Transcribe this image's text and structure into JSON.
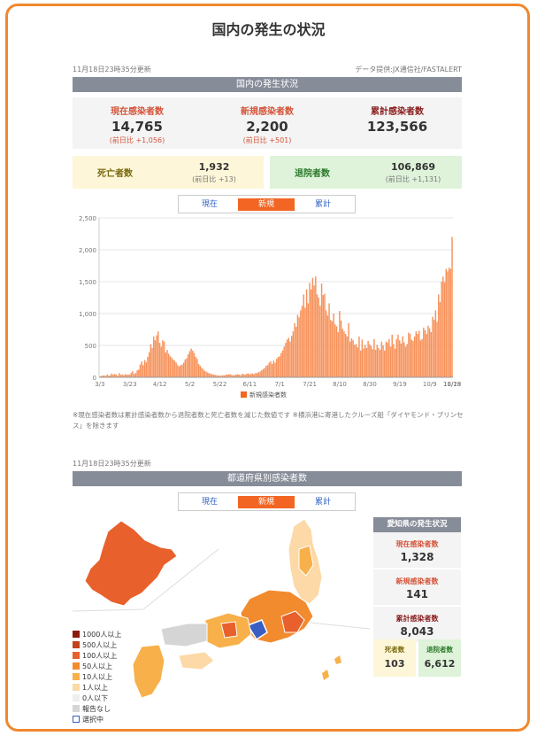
{
  "page_title": "国内の発生の状況",
  "updated_label": "11月18日23時35分更新",
  "source_label": "データ提供:JX通信社/FASTALERT",
  "section1_title": "国内の発生状況",
  "stats": {
    "current": {
      "label": "現在感染者数",
      "value": "14,765",
      "diff": "(前日比 +1,056)"
    },
    "new": {
      "label": "新規感染者数",
      "value": "2,200",
      "diff": "(前日比 +501)"
    },
    "total": {
      "label": "累計感染者数",
      "value": "123,566"
    },
    "deaths": {
      "label": "死亡者数",
      "value": "1,932",
      "diff": "(前日比 +13)"
    },
    "recovered": {
      "label": "退院者数",
      "value": "106,869",
      "diff": "(前日比 +1,131)"
    }
  },
  "tabs": [
    {
      "label": "現在",
      "active": false
    },
    {
      "label": "新規",
      "active": true
    },
    {
      "label": "累計",
      "active": false
    }
  ],
  "colors": {
    "accent": "#f26522",
    "bar": "#f7925a",
    "frame": "#f0882e",
    "deaths_bg": "#fdf6d8",
    "recovered_bg": "#def3d9"
  },
  "chart_data": {
    "type": "bar",
    "series_name": "新規感染者数",
    "ylim": [
      0,
      2500
    ],
    "yticks": [
      "0",
      "500",
      "1,000",
      "1,500",
      "2,000",
      "2,500"
    ],
    "xticks": [
      "3/3",
      "3/23",
      "4/12",
      "5/2",
      "5/22",
      "6/11",
      "7/1",
      "7/21",
      "8/10",
      "8/30",
      "9/19",
      "10/9",
      "10/29",
      "11/18"
    ],
    "start_date": "2020-03-03",
    "values": [
      14,
      22,
      27,
      31,
      20,
      45,
      25,
      30,
      58,
      40,
      53,
      41,
      22,
      64,
      38,
      45,
      32,
      50,
      38,
      45,
      41,
      74,
      96,
      52,
      68,
      110,
      122,
      200,
      250,
      190,
      270,
      235,
      320,
      390,
      520,
      460,
      640,
      580,
      660,
      720,
      540,
      480,
      580,
      560,
      390,
      430,
      370,
      330,
      310,
      280,
      260,
      230,
      190,
      170,
      190,
      200,
      230,
      280,
      300,
      360,
      410,
      450,
      420,
      380,
      320,
      290,
      210,
      180,
      150,
      130,
      100,
      90,
      75,
      65,
      55,
      50,
      42,
      37,
      34,
      28,
      30,
      25,
      33,
      29,
      40,
      45,
      45,
      49,
      38,
      30,
      36,
      45,
      50,
      41,
      35,
      52,
      50,
      41,
      55,
      62,
      45,
      58,
      60,
      48,
      70,
      65,
      80,
      90,
      110,
      130,
      145,
      180,
      190,
      230,
      250,
      210,
      260,
      230,
      290,
      320,
      330,
      380,
      420,
      480,
      540,
      590,
      620,
      560,
      650,
      720,
      850,
      790,
      980,
      940,
      1050,
      1120,
      1300,
      1090,
      1380,
      1160,
      1480,
      1380,
      1560,
      1440,
      1580,
      1300,
      1250,
      1120,
      1470,
      1290,
      1310,
      1050,
      970,
      1160,
      900,
      880,
      1000,
      830,
      800,
      710,
      1040,
      890,
      760,
      720,
      680,
      640,
      850,
      560,
      610,
      580,
      510,
      520,
      470,
      640,
      420,
      590,
      450,
      510,
      460,
      570,
      520,
      490,
      440,
      600,
      430,
      510,
      460,
      430,
      560,
      500,
      420,
      560,
      540,
      600,
      480,
      670,
      520,
      450,
      600,
      670,
      580,
      530,
      640,
      550,
      480,
      520,
      700,
      680,
      590,
      570,
      640,
      720,
      680,
      730,
      580,
      600,
      780,
      740,
      680,
      810,
      770,
      710,
      950,
      900,
      1050,
      870,
      1300,
      1180,
      1500,
      1580,
      1490,
      1700,
      1660,
      1720,
      1700,
      2200
    ],
    "note": "※現在感染者数は累計感染者数から退院者数と死亡者数を減じた数値です ※横浜港に寄港したクルーズ船「ダイヤモンド・プリンセス」を除きます"
  },
  "section2_title": "都道府県別感染者数",
  "map_legend": [
    {
      "label": "1000人以上",
      "color": "#8b1a10"
    },
    {
      "label": "500人以上",
      "color": "#c2431c"
    },
    {
      "label": "100人以上",
      "color": "#e8602c"
    },
    {
      "label": "50人以上",
      "color": "#f28b2e"
    },
    {
      "label": "10人以上",
      "color": "#f7b04a"
    },
    {
      "label": "1人以上",
      "color": "#fcd9a6"
    },
    {
      "label": "0人以下",
      "color": "#eeeeee"
    },
    {
      "label": "報告なし",
      "color": "#d5d5d5"
    },
    {
      "label": "選択中",
      "color": "#ffffff"
    }
  ],
  "aichi": {
    "title": "愛知県の発生状況",
    "current": {
      "label": "現在感染者数",
      "value": "1,328"
    },
    "new": {
      "label": "新規感染者数",
      "value": "141"
    },
    "total": {
      "label": "累計感染者数",
      "value": "8,043"
    },
    "deaths": {
      "label": "死者数",
      "value": "103"
    },
    "recovered": {
      "label": "退院者数",
      "value": "6,612"
    }
  }
}
